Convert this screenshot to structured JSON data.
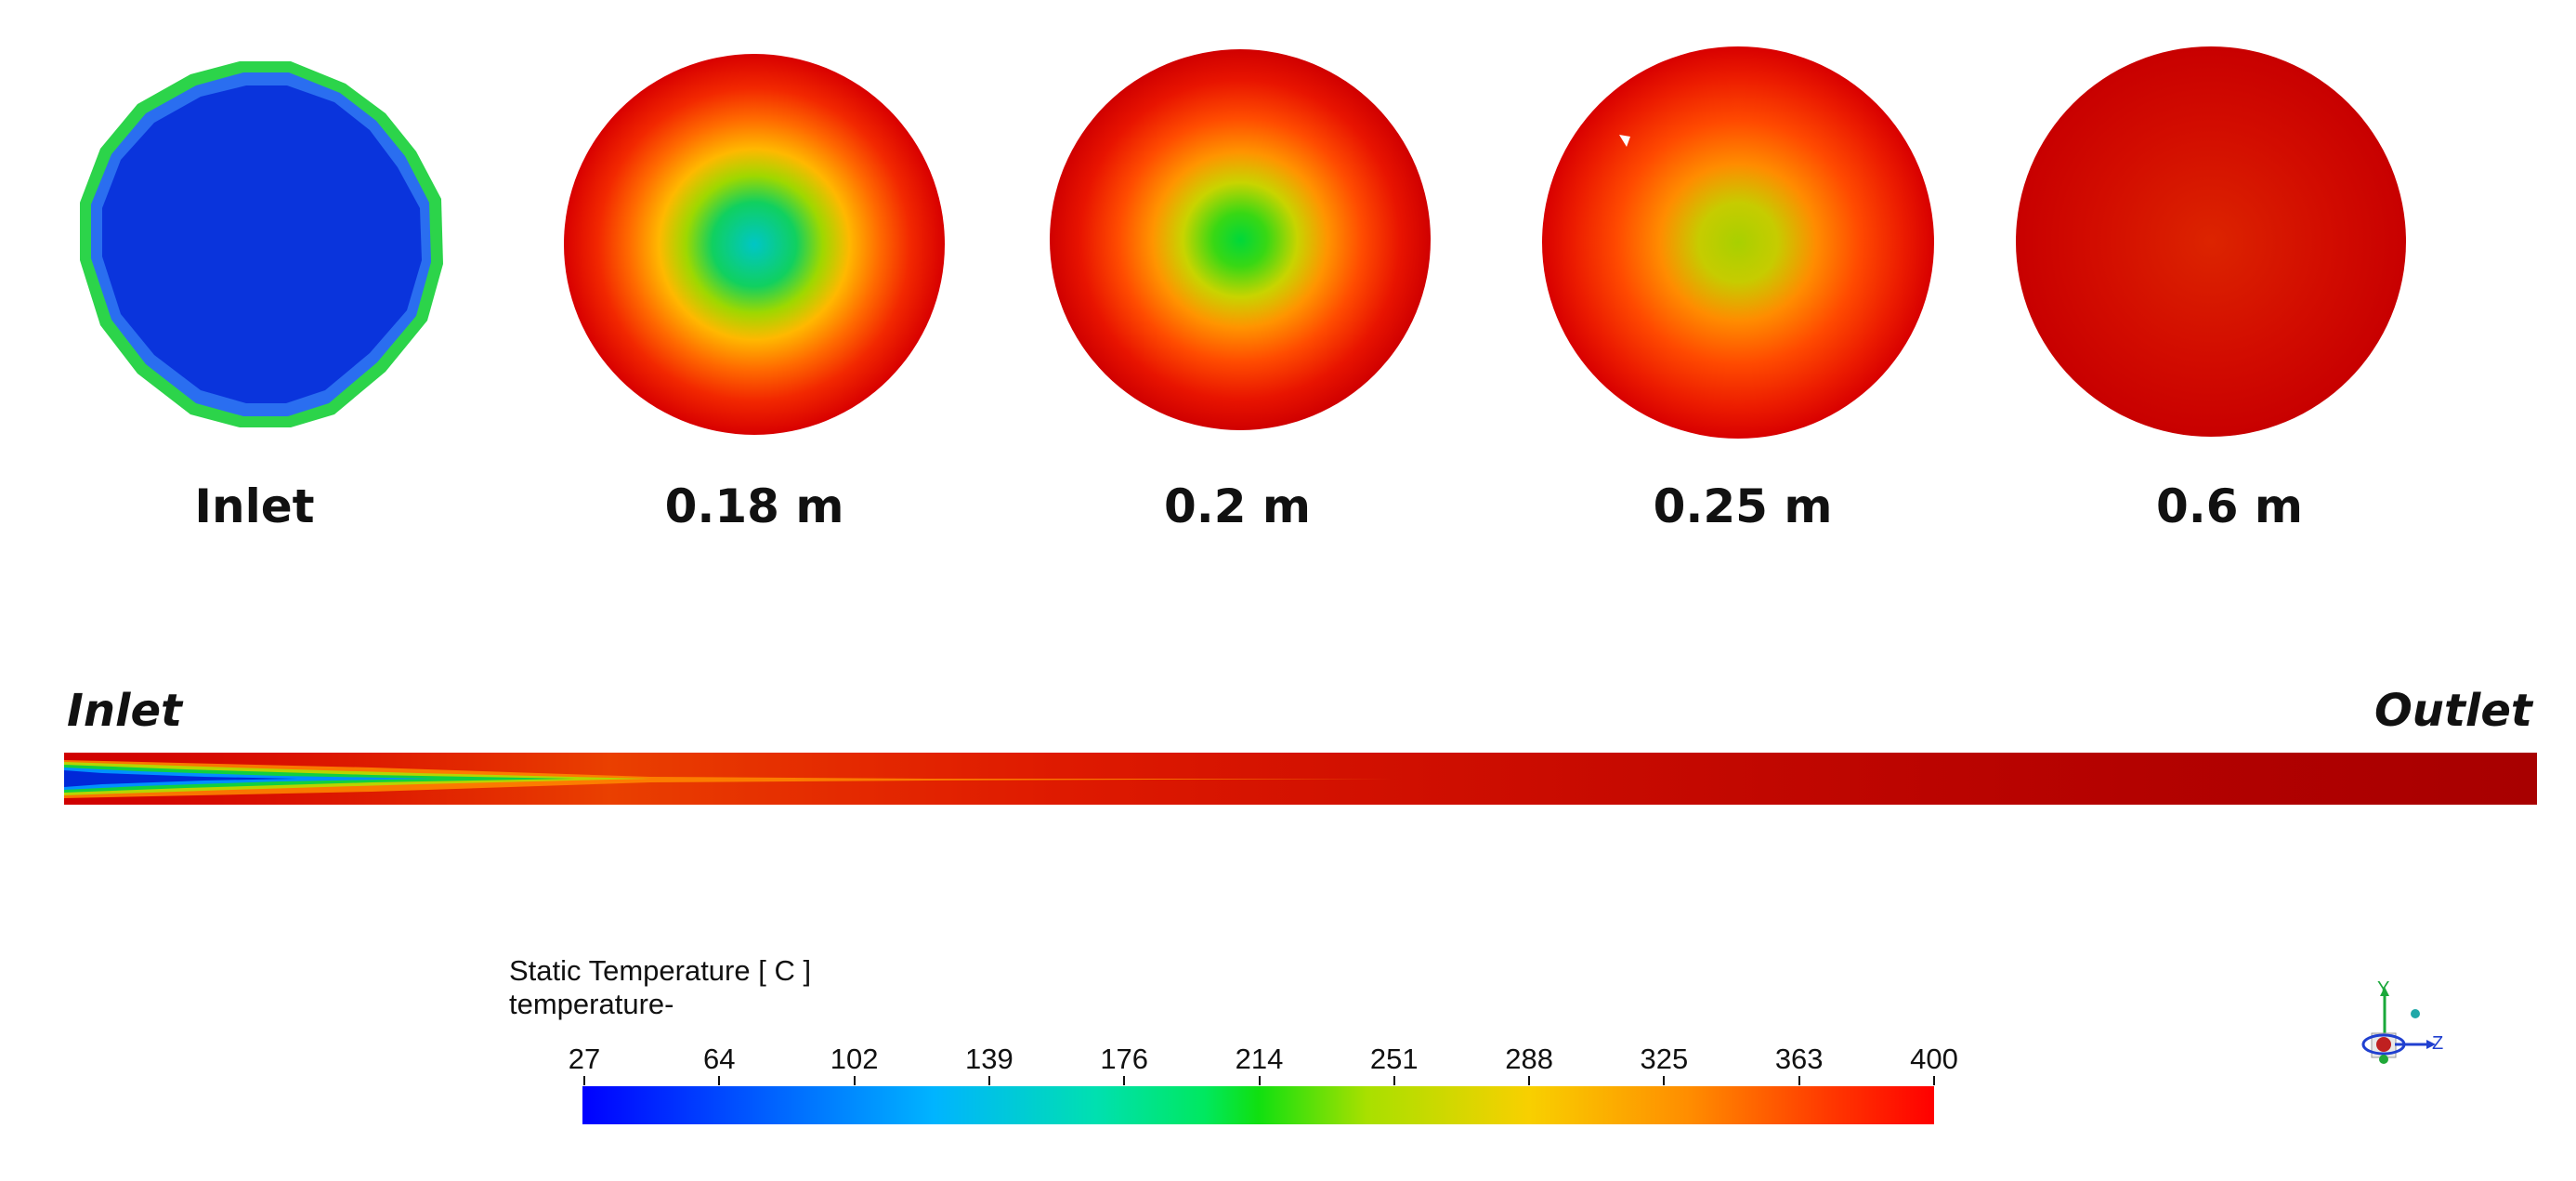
{
  "sections": [
    {
      "label": "Inlet",
      "distance_m": 0
    },
    {
      "label": "0.18 m",
      "distance_m": 0.18
    },
    {
      "label": "0.2 m",
      "distance_m": 0.2
    },
    {
      "label": "0.25 m",
      "distance_m": 0.25
    },
    {
      "label": "0.6 m",
      "distance_m": 0.6
    }
  ],
  "pipe": {
    "inlet_label": "Inlet",
    "outlet_label": "Outlet"
  },
  "legend": {
    "title": "Static Temperature [ C ]",
    "subtitle": "temperature-",
    "min": 27,
    "max": 400,
    "ticks": [
      "27",
      "64",
      "102",
      "139",
      "176",
      "214",
      "251",
      "288",
      "325",
      "363",
      "400"
    ]
  },
  "colors": {
    "cold": "#0033dd",
    "mid": "#00dd22",
    "hot": "#dd0000",
    "wall": "#c40000"
  },
  "axis_triad": {
    "y_label": "Y",
    "z_label": "Z"
  }
}
